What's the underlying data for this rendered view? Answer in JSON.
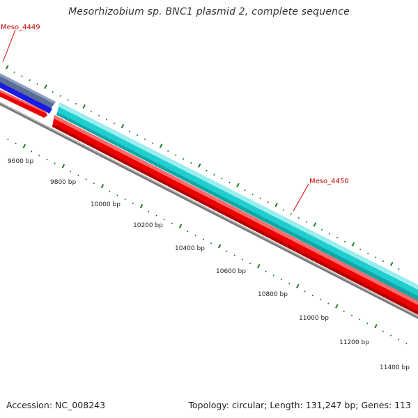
{
  "title": "Mesorhizobium sp. BNC1 plasmid 2, complete sequence",
  "footer": {
    "accession": "Accession: NC_008243",
    "summary": "Topology: circular; Length: 131,247 bp; Genes: 113"
  },
  "ruler_labels": [
    {
      "label": "9600 bp"
    },
    {
      "label": "9800 bp"
    },
    {
      "label": "10000 bp"
    },
    {
      "label": "10200 bp"
    },
    {
      "label": "10400 bp"
    },
    {
      "label": "10600 bp"
    },
    {
      "label": "10800 bp"
    },
    {
      "label": "11000 bp"
    },
    {
      "label": "11200 bp"
    },
    {
      "label": "11400 bp"
    }
  ],
  "genes": [
    {
      "name": "Meso_4449",
      "color": "#cc0000"
    },
    {
      "name": "Meso_4450",
      "color": "#cc0000"
    }
  ],
  "colors": {
    "tick": "#1f7a1f",
    "backbone": "#777777",
    "forward_feature": "#1fcfcf",
    "reverse_feature": "#ee0000",
    "other_feature": "#1a1ae6",
    "other_feature_shade": "#5a6e96",
    "label_line": "#cc0000"
  }
}
